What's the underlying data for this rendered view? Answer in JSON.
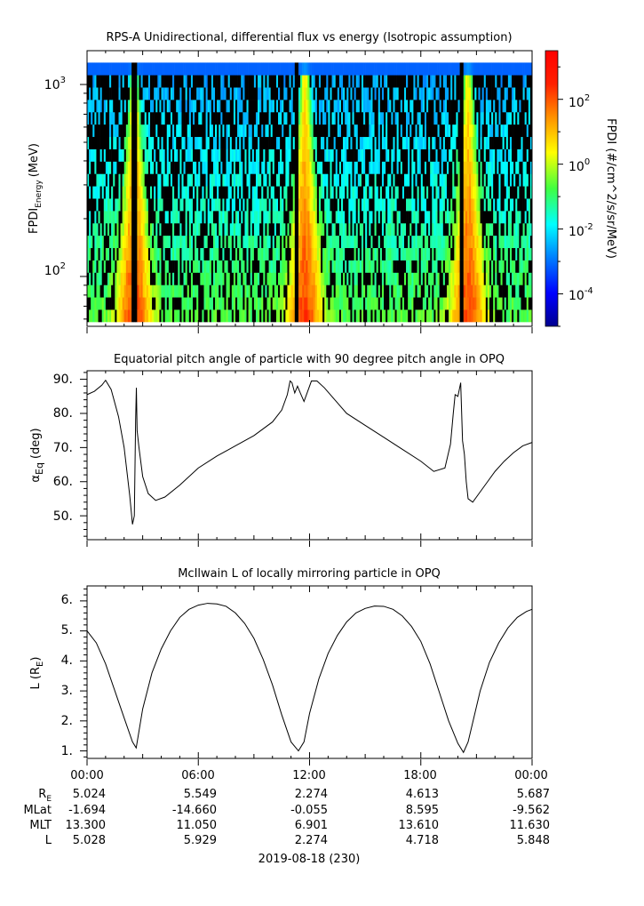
{
  "panel1": {
    "title": "RPS-A Unidirectional, differential flux vs energy (Isotropic assumption)",
    "ylabel_main": "FPDI",
    "ylabel_sub": "Energy",
    "ylabel_unit": "(MeV)",
    "ytick_exp": [
      "3",
      "2"
    ],
    "cbar_label": "FPDI (#/cm^2/s/sr/MeV)",
    "cbar_tick_exp": [
      "2",
      "0",
      "-2",
      "-4"
    ],
    "colors": [
      "#00008f",
      "#0000ff",
      "#0080ff",
      "#00ffff",
      "#80ff80",
      "#ffff00",
      "#ff8000",
      "#ff0000",
      "#800000"
    ]
  },
  "panel2": {
    "title": "Equatorial pitch angle of particle with 90 degree pitch angle in OPQ",
    "ylabel_main": "α",
    "ylabel_sub": "Eq",
    "ylabel_unit": "(deg)",
    "yticks": [
      "90.",
      "80.",
      "70.",
      "60.",
      "50."
    ]
  },
  "panel3": {
    "title": "McIlwain L of locally mirroring particle in OPQ",
    "ylabel_main": "L (R",
    "ylabel_sub": "E",
    "ylabel_unit": ")",
    "yticks": [
      "6.",
      "5.",
      "4.",
      "3.",
      "2.",
      "1."
    ]
  },
  "ephemeris": {
    "times": [
      "00:00",
      "06:00",
      "12:00",
      "18:00",
      "00:00"
    ],
    "rows": [
      {
        "label": "R",
        "label_sub": "E",
        "values": [
          "5.024",
          "5.549",
          "2.274",
          "4.613",
          "5.687"
        ]
      },
      {
        "label": "MLat",
        "label_sub": "",
        "values": [
          "-1.694",
          "-14.660",
          "-0.055",
          "8.595",
          "-9.562"
        ]
      },
      {
        "label": "MLT",
        "label_sub": "",
        "values": [
          "13.300",
          "11.050",
          "6.901",
          "13.610",
          "11.630"
        ]
      },
      {
        "label": "L",
        "label_sub": "",
        "values": [
          "5.028",
          "5.929",
          "2.274",
          "4.718",
          "5.848"
        ]
      }
    ],
    "date": "2019-08-18 (230)"
  },
  "chart_data": [
    {
      "type": "heatmap",
      "title": "RPS-A Unidirectional, differential flux vs energy (Isotropic assumption)",
      "xlabel": "",
      "ylabel": "FPDI Energy (MeV)",
      "xlim_hours": [
        0,
        24
      ],
      "ylim_MeV": [
        55,
        1500
      ],
      "yscale": "log",
      "colorbar_label": "FPDI (#/cm^2/s/sr/MeV)",
      "colorbar_log10_range": [
        -5,
        3.5
      ],
      "colormap": "rainbow (dark blue to dark red)",
      "energy_channels_MeV_range": [
        58,
        1300
      ],
      "channel_count": 21,
      "high_flux_epochs_hours": [
        2.55,
        11.75,
        20.55
      ],
      "data_gaps_hours": [
        2.55,
        11.3,
        20.2
      ]
    },
    {
      "type": "line",
      "title": "Equatorial pitch angle of particle with 90 degree pitch angle in OPQ",
      "ylabel": "αEq (deg)",
      "xlim_hours": [
        0,
        24
      ],
      "ylim": [
        43,
        92.5
      ],
      "x": [
        0,
        0.4,
        0.8,
        1.0,
        1.3,
        1.7,
        2.0,
        2.3,
        2.45,
        2.55,
        2.62,
        2.66,
        2.7,
        2.8,
        3.0,
        3.3,
        3.7,
        4.2,
        5,
        6,
        7,
        8,
        9,
        10,
        10.5,
        10.8,
        10.95,
        11.05,
        11.2,
        11.35,
        11.5,
        11.7,
        11.9,
        12.1,
        12.4,
        12.8,
        13.2,
        14,
        15,
        16,
        17,
        18,
        18.7,
        19.3,
        19.6,
        19.75,
        19.85,
        20.0,
        20.15,
        20.25,
        20.3,
        20.35,
        20.45,
        20.55,
        20.8,
        21.2,
        21.6,
        22,
        22.5,
        23,
        23.5,
        24
      ],
      "y": [
        85.5,
        86.5,
        88.3,
        89.7,
        87,
        79,
        70,
        56,
        47.5,
        50,
        78,
        87.5,
        75,
        70,
        61.5,
        56.5,
        54.5,
        55.5,
        59,
        64,
        67.5,
        70.5,
        73.5,
        77.5,
        81,
        85.5,
        89.5,
        89,
        86,
        88,
        86,
        83.5,
        86.5,
        89.5,
        89.5,
        87.5,
        85,
        80,
        76.5,
        73,
        69.5,
        66,
        63,
        64,
        71,
        80,
        85.5,
        85,
        89,
        72,
        70,
        68,
        60,
        55,
        54,
        57,
        60,
        63,
        66,
        68.5,
        70.5,
        71.5
      ]
    },
    {
      "type": "line",
      "title": "McIlwain L of locally mirroring particle in OPQ",
      "ylabel": "L (RE)",
      "xlim_hours": [
        0,
        24
      ],
      "ylim": [
        0.75,
        6.5
      ],
      "x": [
        0,
        0.5,
        1.0,
        1.5,
        2.0,
        2.45,
        2.65,
        3.0,
        3.5,
        4.0,
        4.5,
        5.0,
        5.5,
        6.0,
        6.5,
        7.0,
        7.5,
        8.0,
        8.5,
        9.0,
        9.5,
        10.0,
        10.5,
        11.0,
        11.4,
        11.7,
        12.0,
        12.5,
        13.0,
        13.5,
        14.0,
        14.5,
        15.0,
        15.5,
        16.0,
        16.5,
        17.0,
        17.5,
        18.0,
        18.5,
        19.0,
        19.5,
        20.0,
        20.3,
        20.55,
        20.8,
        21.2,
        21.7,
        22.2,
        22.7,
        23.2,
        23.7,
        24.0
      ],
      "y": [
        5.0,
        4.6,
        3.9,
        3.0,
        2.1,
        1.3,
        1.1,
        2.4,
        3.6,
        4.4,
        5.0,
        5.45,
        5.72,
        5.86,
        5.92,
        5.9,
        5.82,
        5.6,
        5.25,
        4.75,
        4.05,
        3.2,
        2.2,
        1.3,
        1.0,
        1.3,
        2.25,
        3.4,
        4.25,
        4.85,
        5.3,
        5.6,
        5.75,
        5.83,
        5.82,
        5.72,
        5.5,
        5.15,
        4.65,
        3.9,
        2.95,
        2.0,
        1.25,
        0.95,
        1.3,
        1.95,
        3.0,
        3.95,
        4.6,
        5.1,
        5.45,
        5.65,
        5.72
      ]
    }
  ]
}
